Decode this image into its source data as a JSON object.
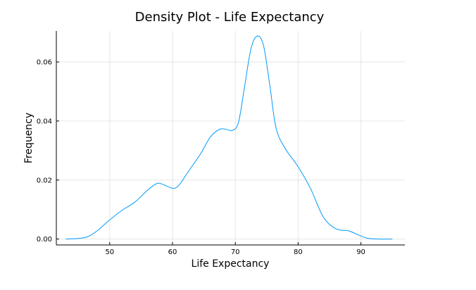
{
  "chart_data": {
    "type": "line",
    "title": "Density Plot - Life Expectancy",
    "xlabel": "Life Expectancy",
    "ylabel": "Frequency",
    "xlim": [
      41.5,
      97
    ],
    "ylim": [
      -0.002,
      0.0705
    ],
    "x_ticks": [
      50,
      60,
      70,
      80,
      90
    ],
    "x_tick_labels": [
      "50",
      "60",
      "70",
      "80",
      "90"
    ],
    "y_ticks": [
      0.0,
      0.02,
      0.04,
      0.06
    ],
    "y_tick_labels": [
      "0.00",
      "0.02",
      "0.04",
      "0.06"
    ],
    "grid": true,
    "legend": "none",
    "series": [
      {
        "color": "#009af9",
        "x": [
          43.0,
          45.0,
          46.5,
          48.0,
          50.0,
          52.0,
          54.0,
          56.0,
          57.5,
          58.5,
          60.0,
          61.0,
          62.5,
          64.5,
          66.0,
          67.5,
          68.5,
          69.5,
          70.5,
          71.5,
          72.5,
          73.5,
          74.5,
          75.5,
          76.5,
          78.0,
          80.0,
          82.0,
          84.0,
          86.0,
          88.0,
          89.5,
          91.0,
          93.0,
          95.0
        ],
        "y": [
          0.0,
          0.0002,
          0.0008,
          0.0028,
          0.0065,
          0.0098,
          0.0125,
          0.0165,
          0.0188,
          0.0185,
          0.0172,
          0.0182,
          0.0228,
          0.029,
          0.0345,
          0.0372,
          0.0372,
          0.0368,
          0.0395,
          0.052,
          0.0645,
          0.0688,
          0.0655,
          0.052,
          0.0375,
          0.0305,
          0.0245,
          0.017,
          0.0075,
          0.0035,
          0.0028,
          0.0015,
          0.0003,
          0.0,
          0.0
        ]
      }
    ]
  }
}
